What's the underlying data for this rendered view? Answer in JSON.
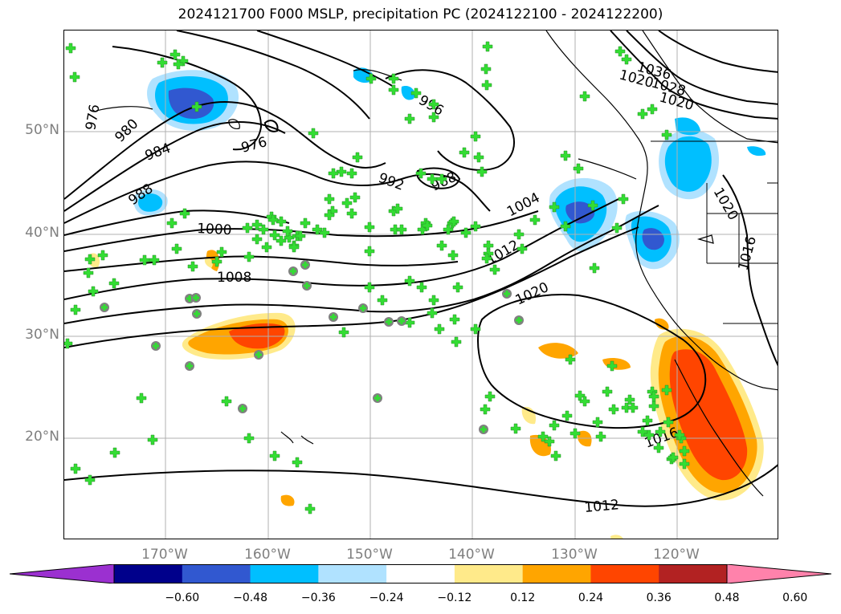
{
  "title": "2024121700 F000 MSLP, precipitation PC (2024122100 - 2024122200)",
  "lat_labels": [
    "50°N",
    "40°N",
    "30°N",
    "20°N"
  ],
  "lon_labels": [
    "170°W",
    "160°W",
    "150°W",
    "140°W",
    "130°W",
    "120°W"
  ],
  "contour_labels": [
    "976",
    "980",
    "984",
    "988",
    "976",
    "996",
    "992",
    "988",
    "1000",
    "1008",
    "1004",
    "1012",
    "1020",
    "1036",
    "1020",
    "1028",
    "1020",
    "1020",
    "1016",
    "1012",
    "1016"
  ],
  "colorbar": {
    "ticks": [
      "−0.60",
      "−0.48",
      "−0.36",
      "−0.24",
      "−0.12",
      "0.12",
      "0.24",
      "0.36",
      "0.48",
      "0.60"
    ],
    "colors": [
      "#9b30d0",
      "#00008b",
      "#3158d0",
      "#00bfff",
      "#b0e2ff",
      "#ffffff",
      "#ffea8a",
      "#ffa500",
      "#ff4500",
      "#b22222",
      "#ff82ab"
    ]
  },
  "colors": {
    "negative_strong": "#3158d0",
    "negative_mid": "#00bfff",
    "negative_weak": "#b0e2ff",
    "positive_weak": "#ffea8a",
    "positive_mid": "#ffa500",
    "positive_strong": "#ff4500",
    "marker_green": "#33dd33",
    "marker_grey": "#808080",
    "grid": "#b0b0b0"
  }
}
